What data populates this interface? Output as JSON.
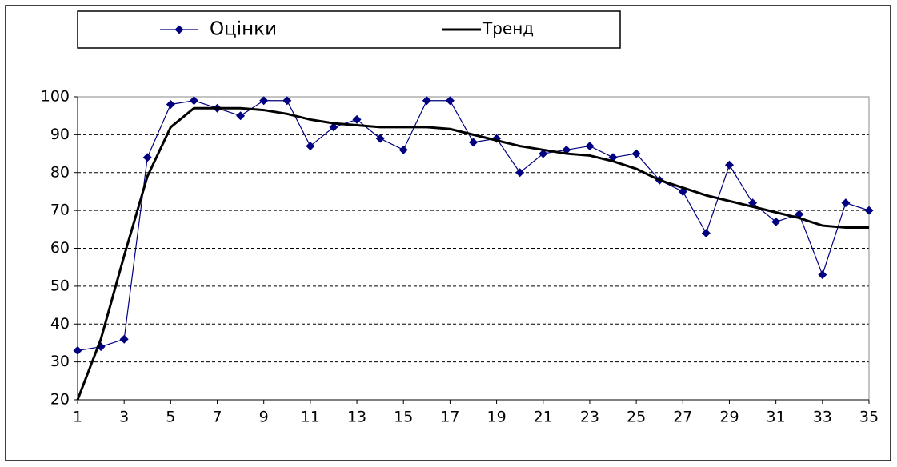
{
  "chart_data": {
    "type": "line",
    "x": [
      1,
      2,
      3,
      4,
      5,
      6,
      7,
      8,
      9,
      10,
      11,
      12,
      13,
      14,
      15,
      16,
      17,
      18,
      19,
      20,
      21,
      22,
      23,
      24,
      25,
      26,
      27,
      28,
      29,
      30,
      31,
      32,
      33,
      34,
      35
    ],
    "series": [
      {
        "name": "Оцінки",
        "color": "#000080",
        "marker": "diamond",
        "values": [
          33,
          34,
          36,
          84,
          98,
          99,
          97,
          95,
          99,
          99,
          87,
          92,
          94,
          89,
          86,
          99,
          99,
          88,
          89,
          80,
          85,
          86,
          87,
          84,
          85,
          78,
          75,
          64,
          82,
          72,
          67,
          69,
          53,
          72,
          70
        ]
      },
      {
        "name": "Тренд",
        "color": "#000000",
        "values": [
          20,
          36,
          58,
          79,
          92,
          97,
          97,
          97,
          96.5,
          95.5,
          94,
          93,
          92.5,
          92,
          92,
          92,
          91.5,
          90,
          88.5,
          87,
          86,
          85,
          84.5,
          83,
          81,
          78,
          76,
          74,
          72.5,
          71,
          69.5,
          68,
          66,
          65.5,
          65.5
        ]
      }
    ],
    "xlim": [
      1,
      35
    ],
    "xticks": [
      1,
      3,
      5,
      7,
      9,
      11,
      13,
      15,
      17,
      19,
      21,
      23,
      25,
      27,
      29,
      31,
      33,
      35
    ],
    "ylim": [
      20,
      100
    ],
    "yticks": [
      20,
      30,
      40,
      50,
      60,
      70,
      80,
      90,
      100
    ],
    "grid": true,
    "legend": "top"
  }
}
